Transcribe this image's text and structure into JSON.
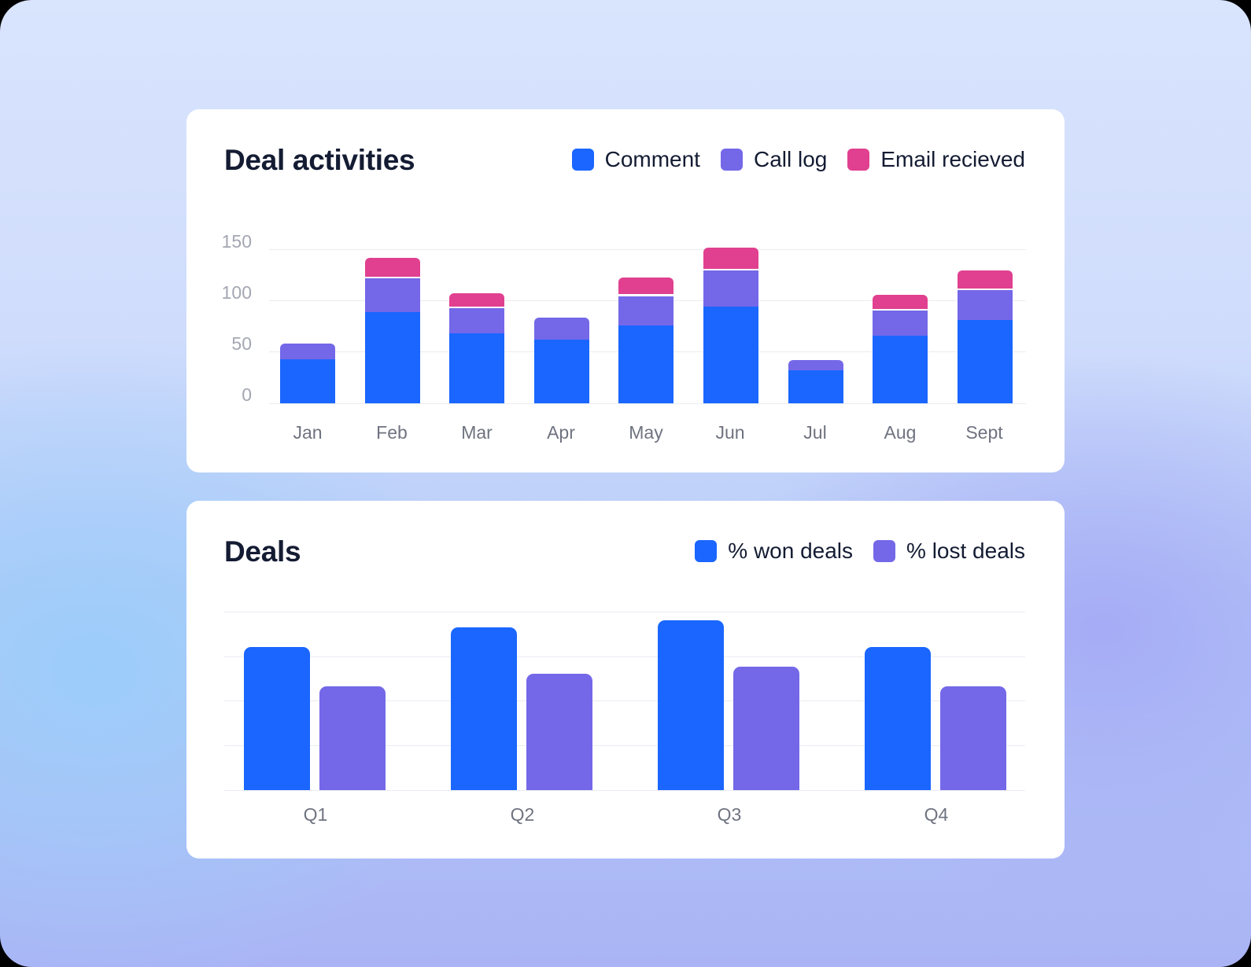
{
  "colors": {
    "comment": "#1a66ff",
    "call_log": "#7468e8",
    "email": "#e0408f",
    "won": "#1a66ff",
    "lost": "#7468e8",
    "title": "#141c33",
    "axis_text": "#a4a7b3",
    "tick_text": "#6f7380",
    "grid": "#ebecf2"
  },
  "deal_activities": {
    "title": "Deal activities",
    "legend": [
      {
        "label": "Comment",
        "color": "#1a66ff"
      },
      {
        "label": "Call log",
        "color": "#7468e8"
      },
      {
        "label": "Email recieved",
        "color": "#e0408f"
      }
    ],
    "y_ticks": [
      "150",
      "100",
      "50",
      "0"
    ],
    "x_ticks": [
      "Jan",
      "Feb",
      "Mar",
      "Apr",
      "May",
      "Jun",
      "Jul",
      "Aug",
      "Sept"
    ]
  },
  "deals": {
    "title": "Deals",
    "legend": [
      {
        "label": "% won deals",
        "color": "#1a66ff"
      },
      {
        "label": "% lost deals",
        "color": "#7468e8"
      }
    ],
    "x_ticks": [
      "Q1",
      "Q2",
      "Q3",
      "Q4"
    ]
  },
  "chart_data": [
    {
      "type": "bar",
      "stacked": true,
      "title": "Deal activities",
      "categories": [
        "Jan",
        "Feb",
        "Mar",
        "Apr",
        "May",
        "Jun",
        "Jul",
        "Aug",
        "Sept"
      ],
      "series": [
        {
          "name": "Comment",
          "color": "#1a66ff",
          "values": [
            43,
            89,
            68,
            62,
            76,
            94,
            32,
            66,
            81
          ]
        },
        {
          "name": "Call log",
          "color": "#7468e8",
          "values": [
            17,
            34,
            26,
            23,
            30,
            37,
            12,
            26,
            31
          ]
        },
        {
          "name": "Email recieved",
          "color": "#e0408f",
          "values": [
            0,
            20,
            15,
            0,
            18,
            22,
            0,
            15,
            19
          ]
        }
      ],
      "xlabel": "",
      "ylabel": "",
      "ylim": [
        0,
        150
      ],
      "yticks": [
        0,
        50,
        100,
        150
      ],
      "grid": true,
      "legend_position": "top-right"
    },
    {
      "type": "bar",
      "stacked": false,
      "title": "Deals",
      "categories": [
        "Q1",
        "Q2",
        "Q3",
        "Q4"
      ],
      "series": [
        {
          "name": "% won deals",
          "color": "#1a66ff",
          "values": [
            80,
            91,
            95,
            80
          ]
        },
        {
          "name": "% lost deals",
          "color": "#7468e8",
          "values": [
            58,
            65,
            69,
            58
          ]
        }
      ],
      "xlabel": "",
      "ylabel": "",
      "ylim": [
        0,
        100
      ],
      "yticks_visible": false,
      "grid": true,
      "legend_position": "top-right"
    }
  ]
}
